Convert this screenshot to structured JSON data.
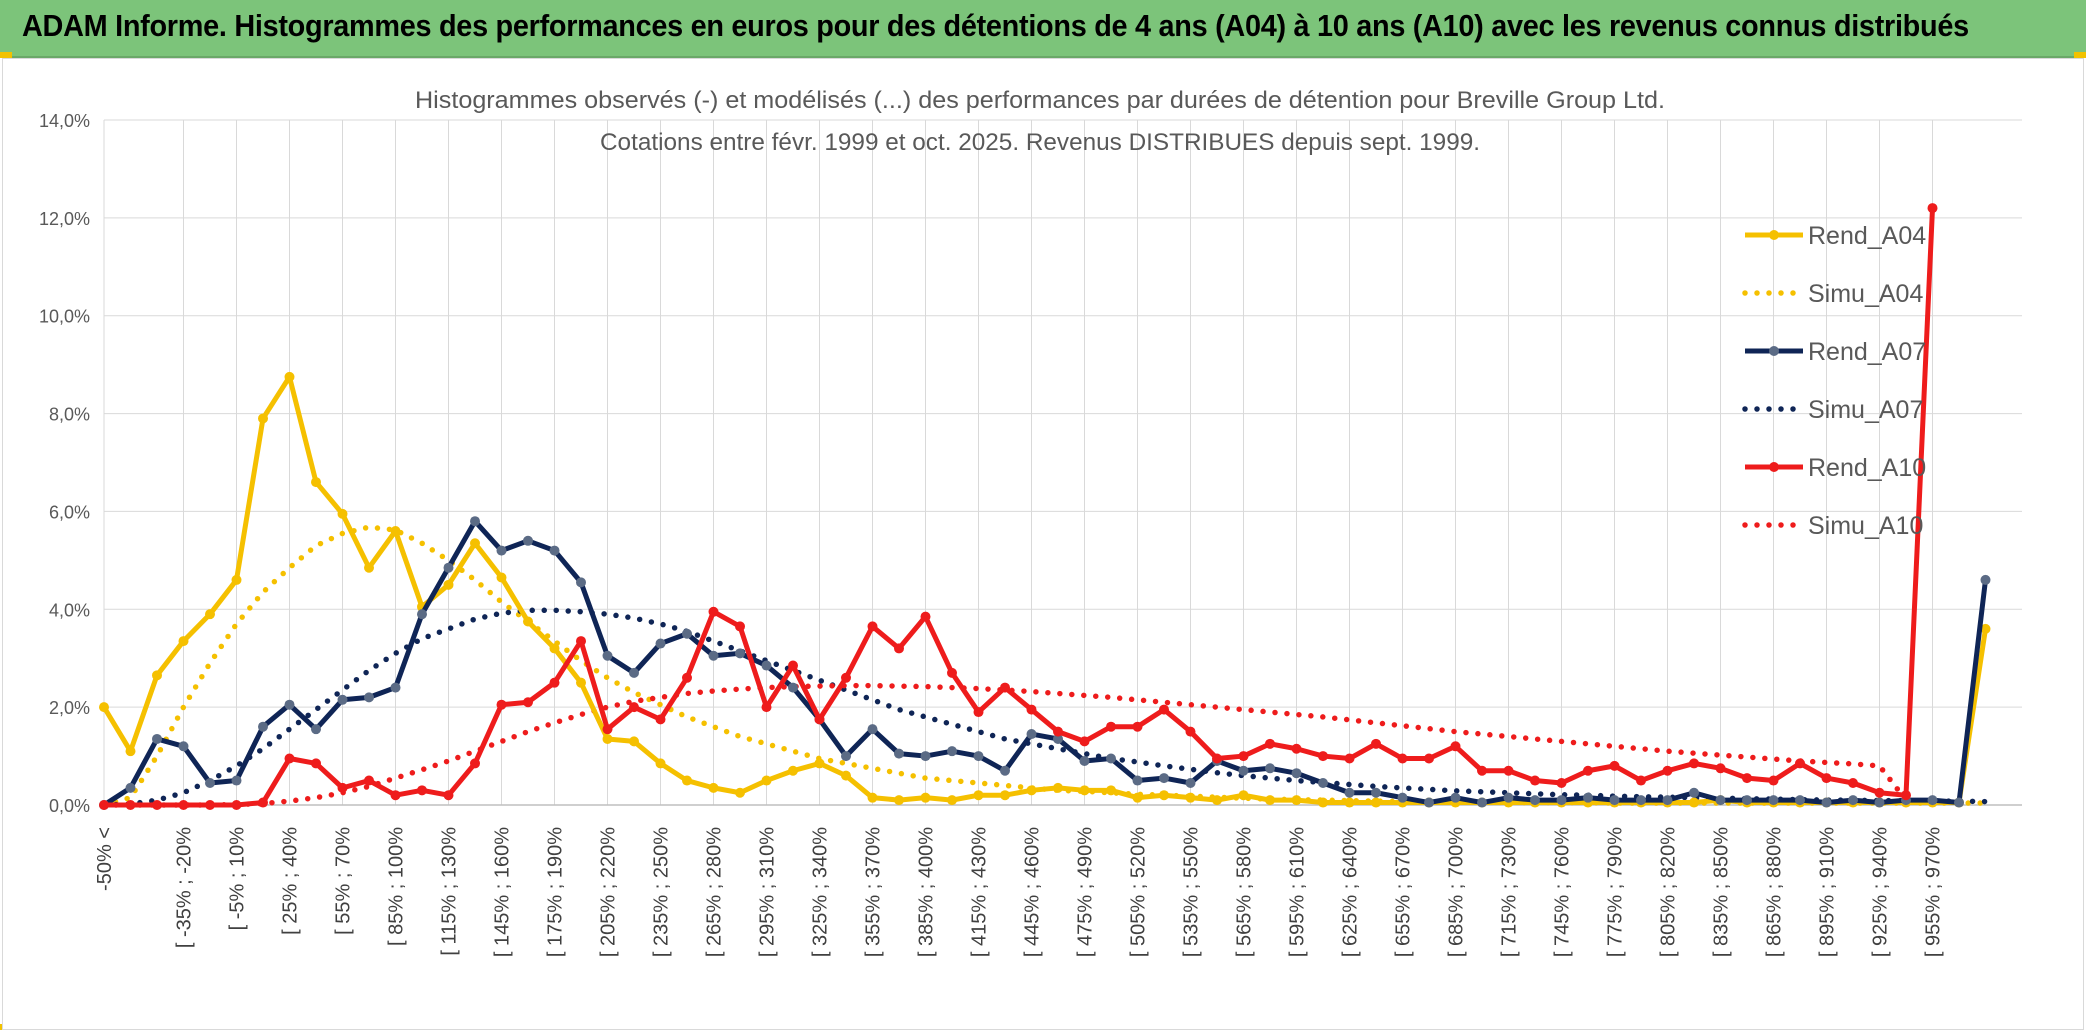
{
  "header": {
    "banner_title": "ADAM Informe. Histogrammes des performances en euros pour des détentions de 4 ans (A04) à 10 ans (A10) avec les revenus connus distribués"
  },
  "chart_data": {
    "type": "line",
    "title": "Histogrammes observés (-) et modélisés (...) des performances par durées de détention pour Breville Group Ltd.",
    "subtitle": "Cotations entre févr. 1999 et oct. 2025. Revenus DISTRIBUES depuis sept. 1999.",
    "xlabel": "",
    "ylabel": "",
    "ylim": [
      0,
      14
    ],
    "yticks": [
      "0,0%",
      "2,0%",
      "4,0%",
      "6,0%",
      "8,0%",
      "10,0%",
      "12,0%",
      "14,0%"
    ],
    "grid": true,
    "legend_position": "right",
    "x_tick_labels": [
      "-50% <",
      "[ -35% ; -20%",
      "[ -5% ; 10%",
      "[ 25% ; 40%",
      "[ 55% ; 70%",
      "[ 85% ; 100%",
      "[ 115% ; 130%",
      "[ 145% ; 160%",
      "[ 175% ; 190%",
      "[ 205% ; 220%",
      "[ 235% ; 250%",
      "[ 265% ; 280%",
      "[ 295% ; 310%",
      "[ 325% ; 340%",
      "[ 355% ; 370%",
      "[ 385% ; 400%",
      "[ 415% ; 430%",
      "[ 445% ; 460%",
      "[ 475% ; 490%",
      "[ 505% ; 520%",
      "[ 535% ; 550%",
      "[ 565% ; 580%",
      "[ 595% ; 610%",
      "[ 625% ; 640%",
      "[ 655% ; 670%",
      "[ 685% ; 700%",
      "[ 715% ; 730%",
      "[ 745% ; 760%",
      "[ 775% ; 790%",
      "[ 805% ; 820%",
      "[ 835% ; 850%",
      "[ 865% ; 880%",
      "[ 895% ; 910%",
      "[ 925% ; 940%",
      "[ 955% ; 970%"
    ],
    "series": [
      {
        "name": "Rend_A04",
        "color": "#f5c000",
        "style": "solid",
        "markers": true,
        "values": [
          2.0,
          1.1,
          2.65,
          3.35,
          3.9,
          4.6,
          7.9,
          8.75,
          6.6,
          5.95,
          4.85,
          5.6,
          4.05,
          4.5,
          5.35,
          4.65,
          3.75,
          3.2,
          2.5,
          1.35,
          1.3,
          0.85,
          0.5,
          0.35,
          0.25,
          0.5,
          0.7,
          0.85,
          0.6,
          0.15,
          0.1,
          0.15,
          0.1,
          0.2,
          0.2,
          0.3,
          0.35,
          0.3,
          0.3,
          0.15,
          0.2,
          0.15,
          0.1,
          0.2,
          0.1,
          0.1,
          0.05,
          0.05,
          0.05,
          0.05,
          0.05,
          0.05,
          0.05,
          0.05,
          0.05,
          0.05,
          0.05,
          0.05,
          0.05,
          0.05,
          0.05,
          0.1,
          0.05,
          0.05,
          0.05,
          0.05,
          0.05,
          0.05,
          0.05,
          0.05,
          0.05,
          3.6
        ]
      },
      {
        "name": "Simu_A04",
        "color": "#f5c000",
        "style": "dotted",
        "markers": false,
        "values": [
          0.0,
          0.15,
          1.0,
          2.0,
          2.9,
          3.7,
          4.35,
          4.85,
          5.3,
          5.55,
          5.68,
          5.62,
          5.35,
          5.0,
          4.6,
          4.15,
          3.75,
          3.35,
          2.95,
          2.6,
          2.3,
          2.05,
          1.8,
          1.6,
          1.4,
          1.25,
          1.1,
          0.95,
          0.85,
          0.75,
          0.65,
          0.55,
          0.5,
          0.45,
          0.4,
          0.35,
          0.3,
          0.28,
          0.25,
          0.22,
          0.2,
          0.18,
          0.16,
          0.14,
          0.12,
          0.11,
          0.1,
          0.09,
          0.08,
          0.07,
          0.07,
          0.06,
          0.06,
          0.05,
          0.05,
          0.05,
          0.05,
          0.04,
          0.04,
          0.04,
          0.04,
          0.04,
          0.04,
          0.04,
          0.04,
          0.04,
          0.04,
          0.04,
          0.04,
          0.04,
          0.04,
          0.04
        ]
      },
      {
        "name": "Rend_A07",
        "color": "#0f2556",
        "style": "solid",
        "markers": true,
        "values": [
          0.0,
          0.35,
          1.35,
          1.2,
          0.45,
          0.5,
          1.6,
          2.05,
          1.55,
          2.15,
          2.2,
          2.4,
          3.9,
          4.85,
          5.8,
          5.2,
          5.4,
          5.2,
          4.55,
          3.05,
          2.7,
          3.3,
          3.5,
          3.05,
          3.1,
          2.85,
          2.4,
          1.75,
          1.0,
          1.55,
          1.05,
          1.0,
          1.1,
          1.0,
          0.7,
          1.45,
          1.35,
          0.9,
          0.95,
          0.5,
          0.55,
          0.45,
          0.9,
          0.7,
          0.75,
          0.65,
          0.45,
          0.25,
          0.25,
          0.15,
          0.05,
          0.15,
          0.05,
          0.15,
          0.1,
          0.1,
          0.15,
          0.1,
          0.1,
          0.1,
          0.25,
          0.1,
          0.1,
          0.1,
          0.1,
          0.05,
          0.1,
          0.05,
          0.1,
          0.1,
          0.05,
          4.6
        ]
      },
      {
        "name": "Simu_A07",
        "color": "#0f2556",
        "style": "dotted",
        "markers": false,
        "values": [
          0.0,
          0.02,
          0.1,
          0.25,
          0.5,
          0.8,
          1.15,
          1.55,
          1.95,
          2.35,
          2.75,
          3.1,
          3.4,
          3.6,
          3.8,
          3.92,
          3.98,
          3.98,
          3.95,
          3.9,
          3.82,
          3.7,
          3.55,
          3.35,
          3.15,
          2.95,
          2.75,
          2.55,
          2.35,
          2.15,
          1.95,
          1.8,
          1.65,
          1.5,
          1.35,
          1.25,
          1.15,
          1.05,
          0.95,
          0.88,
          0.8,
          0.73,
          0.66,
          0.6,
          0.55,
          0.5,
          0.46,
          0.42,
          0.38,
          0.35,
          0.32,
          0.29,
          0.27,
          0.25,
          0.23,
          0.21,
          0.2,
          0.18,
          0.17,
          0.16,
          0.15,
          0.14,
          0.13,
          0.12,
          0.11,
          0.1,
          0.1,
          0.09,
          0.09,
          0.08,
          0.08,
          0.07
        ]
      },
      {
        "name": "Rend_A10",
        "color": "#ee1c1c",
        "style": "solid",
        "markers": true,
        "values": [
          0.0,
          0.0,
          0.0,
          0.0,
          0.0,
          0.0,
          0.05,
          0.95,
          0.85,
          0.35,
          0.5,
          0.2,
          0.3,
          0.2,
          0.85,
          2.05,
          2.1,
          2.5,
          3.35,
          1.55,
          2.0,
          1.75,
          2.6,
          3.95,
          3.65,
          2.0,
          2.85,
          1.75,
          2.6,
          3.65,
          3.2,
          3.85,
          2.7,
          1.9,
          2.4,
          1.95,
          1.5,
          1.3,
          1.6,
          1.6,
          1.95,
          1.5,
          0.95,
          1.0,
          1.25,
          1.15,
          1.0,
          0.95,
          1.25,
          0.95,
          0.95,
          1.2,
          0.7,
          0.7,
          0.5,
          0.45,
          0.7,
          0.8,
          0.5,
          0.7,
          0.85,
          0.75,
          0.55,
          0.5,
          0.85,
          0.55,
          0.45,
          0.25,
          0.2,
          12.2
        ]
      },
      {
        "name": "Simu_A10",
        "color": "#ee1c1c",
        "style": "dotted",
        "markers": false,
        "values": [
          0.0,
          0.0,
          0.0,
          0.0,
          0.0,
          0.01,
          0.03,
          0.08,
          0.15,
          0.25,
          0.38,
          0.55,
          0.72,
          0.9,
          1.1,
          1.3,
          1.5,
          1.68,
          1.85,
          2.0,
          2.12,
          2.2,
          2.28,
          2.33,
          2.37,
          2.4,
          2.42,
          2.43,
          2.44,
          2.44,
          2.43,
          2.42,
          2.4,
          2.38,
          2.35,
          2.32,
          2.28,
          2.24,
          2.2,
          2.15,
          2.1,
          2.05,
          2.0,
          1.95,
          1.9,
          1.85,
          1.8,
          1.74,
          1.68,
          1.62,
          1.56,
          1.5,
          1.45,
          1.4,
          1.35,
          1.3,
          1.25,
          1.2,
          1.15,
          1.1,
          1.06,
          1.02,
          0.98,
          0.94,
          0.9,
          0.87,
          0.84,
          0.8,
          0.1
        ]
      }
    ]
  }
}
